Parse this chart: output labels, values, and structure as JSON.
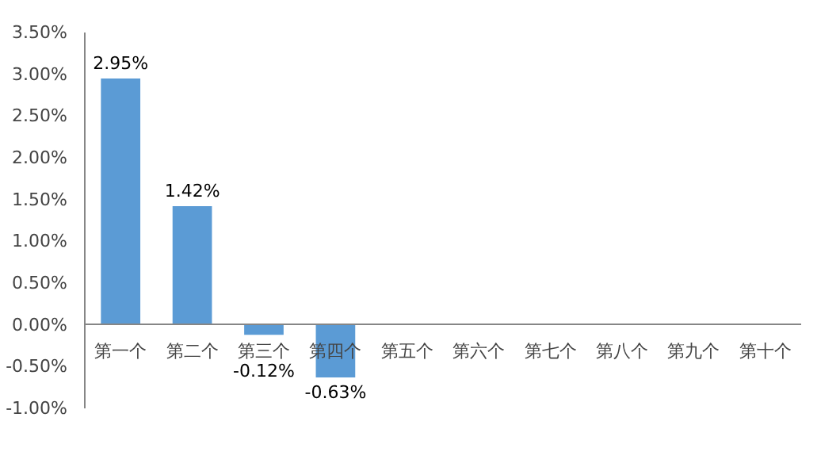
{
  "chart_data": {
    "type": "bar",
    "categories": [
      "第一个",
      "第二个",
      "第三个",
      "第四个",
      "第五个",
      "第六个",
      "第七个",
      "第八个",
      "第九个",
      "第十个"
    ],
    "values": [
      2.95,
      1.42,
      -0.12,
      -0.63,
      null,
      null,
      null,
      null,
      null,
      null
    ],
    "color": "#5b9bd5",
    "value_labels": [
      "2.95%",
      "1.42%",
      "-0.12%",
      "-0.63%",
      null,
      null,
      null,
      null,
      null,
      null
    ],
    "ylim": [
      -1.0,
      3.5
    ],
    "yticks": [
      {
        "value": -1.0,
        "label": "-1.00%"
      },
      {
        "value": -0.5,
        "label": "-0.50%"
      },
      {
        "value": 0.0,
        "label": "0.00%"
      },
      {
        "value": 0.5,
        "label": "0.50%"
      },
      {
        "value": 1.0,
        "label": "1.00%"
      },
      {
        "value": 1.5,
        "label": "1.50%"
      },
      {
        "value": 2.0,
        "label": "2.00%"
      },
      {
        "value": 2.5,
        "label": "2.50%"
      },
      {
        "value": 3.0,
        "label": "3.00%"
      },
      {
        "value": 3.5,
        "label": "3.50%"
      }
    ],
    "grid": false
  }
}
